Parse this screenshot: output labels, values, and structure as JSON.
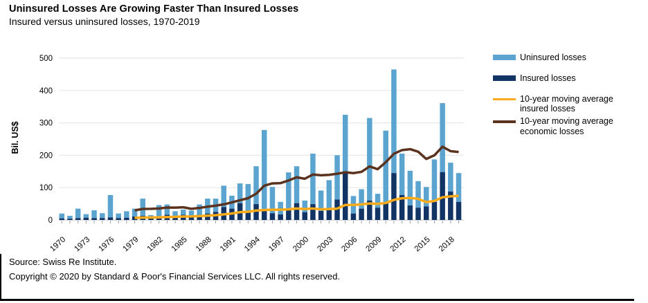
{
  "header": {
    "title": "Uninsured Losses Are Growing Faster Than Insured Losses",
    "subtitle": "Insured versus uninsured losses, 1970-2019"
  },
  "legend": [
    {
      "label": "Uninsured losses",
      "type": "bar",
      "color_key": "uninsured"
    },
    {
      "label": "Insured losses",
      "type": "bar",
      "color_key": "insured"
    },
    {
      "label": "10-year moving average insured losses",
      "type": "line",
      "color_key": "ma_insured"
    },
    {
      "label": "10-year moving average economic losses",
      "type": "line",
      "color_key": "ma_economic"
    }
  ],
  "footer": {
    "source": "Source: Swiss Re Institute.",
    "copyright": "Copyright © 2020 by Standard & Poor's Financial Services LLC. All rights reserved."
  },
  "chart_data": {
    "type": "bar",
    "subtype": "stacked bars with two moving-average overlay lines",
    "title": "Uninsured Losses Are Growing Faster Than Insured Losses",
    "subtitle": "Insured versus uninsured losses, 1970-2019",
    "xlabel": "",
    "ylabel": "Bil. US$",
    "ylim": [
      0,
      500
    ],
    "yticks": [
      0,
      100,
      200,
      300,
      400,
      500
    ],
    "grid": "horizontal",
    "legend_position": "right",
    "years": [
      1970,
      1971,
      1972,
      1973,
      1974,
      1975,
      1976,
      1977,
      1978,
      1979,
      1980,
      1981,
      1982,
      1983,
      1984,
      1985,
      1986,
      1987,
      1988,
      1989,
      1990,
      1991,
      1992,
      1993,
      1994,
      1995,
      1996,
      1997,
      1998,
      1999,
      2000,
      2001,
      2002,
      2003,
      2004,
      2005,
      2006,
      2007,
      2008,
      2009,
      2010,
      2011,
      2012,
      2013,
      2014,
      2015,
      2016,
      2017,
      2018,
      2019
    ],
    "xtick_label_years": [
      1970,
      1973,
      1976,
      1979,
      1982,
      1985,
      1988,
      1991,
      1994,
      1997,
      2000,
      2003,
      2006,
      2009,
      2012,
      2015,
      2018
    ],
    "series": [
      {
        "name": "Insured losses",
        "stack_order": "bottom",
        "values": [
          5,
          4,
          6,
          7,
          6,
          6,
          8,
          6,
          7,
          11,
          13,
          8,
          11,
          16,
          11,
          16,
          11,
          16,
          20,
          25,
          40,
          35,
          52,
          28,
          49,
          31,
          21,
          17,
          31,
          52,
          24,
          49,
          28,
          35,
          63,
          145,
          20,
          35,
          60,
          38,
          52,
          145,
          77,
          45,
          38,
          42,
          56,
          148,
          88,
          56
        ]
      },
      {
        "name": "Uninsured losses",
        "stack_order": "top",
        "values": [
          15,
          9,
          29,
          11,
          24,
          15,
          69,
          14,
          20,
          24,
          53,
          7,
          35,
          32,
          16,
          16,
          18,
          32,
          46,
          41,
          66,
          40,
          61,
          83,
          117,
          247,
          81,
          39,
          116,
          114,
          36,
          156,
          63,
          88,
          137,
          180,
          54,
          60,
          255,
          43,
          224,
          320,
          128,
          107,
          82,
          60,
          131,
          213,
          89,
          89
        ]
      }
    ],
    "moving_averages": {
      "start_year": 1979,
      "insured": [
        6.6,
        7.4,
        7.8,
        8.3,
        9.2,
        9.7,
        10.7,
        11.0,
        12.0,
        13.3,
        14.7,
        17.4,
        20.1,
        24.2,
        25.4,
        29.2,
        30.7,
        31.7,
        31.8,
        32.9,
        35.6,
        34.0,
        35.4,
        33.0,
        33.7,
        35.1,
        46.5,
        46.4,
        48.2,
        51.1,
        49.7,
        52.5,
        62.1,
        67.0,
        68.0,
        65.5,
        55.2,
        58.8,
        70.1,
        72.9,
        74.7
      ],
      "economic": [
        29.6,
        34.2,
        34.4,
        35.5,
        38.5,
        38.2,
        39.3,
        34.5,
        37.3,
        41.2,
        44.3,
        48.3,
        54.3,
        61.0,
        67.3,
        81.2,
        105.8,
        113.1,
        113.9,
        122.0,
        132.0,
        127.4,
        140.4,
        138.2,
        139.4,
        142.8,
        147.5,
        144.7,
        148.6,
        165.4,
        156.9,
        178.5,
        204.5,
        215.9,
        218.8,
        210.8,
        188.5,
        199.8,
        226.4,
        212.6,
        210.0
      ]
    },
    "colors": {
      "uninsured": "#5BA4CF",
      "insured": "#123465",
      "ma_insured": "#FBAB18",
      "ma_economic": "#5A321D",
      "gridline": "#E7E7E7",
      "baseline": "#CFCFCF",
      "tick": "#9E9E9E"
    }
  }
}
